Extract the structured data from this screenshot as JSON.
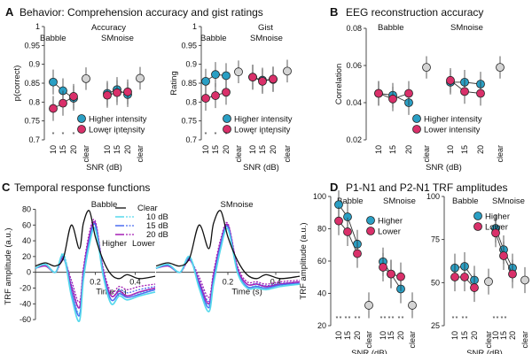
{
  "panels": {
    "A": {
      "letter": "A",
      "title": "Behavior: Comprehension accuracy and gist ratings"
    },
    "B": {
      "letter": "B",
      "title": "EEG reconstruction accuracy"
    },
    "C": {
      "letter": "C",
      "title": "Temporal response functions"
    },
    "D": {
      "letter": "D",
      "title": "P1-N1 and P2-N1 TRF amplitudes"
    }
  },
  "colors": {
    "higher": "#2a9fc4",
    "lower": "#d9306a",
    "clear": "#d4d4d4",
    "star_lower": "#e46a9a",
    "star_higher": "#8a9ce0",
    "cyan": "#55d8ec",
    "blue": "#4a6cf0",
    "purple": "#a51fb5"
  },
  "chart_data": [
    {
      "id": "accuracy",
      "type": "scatter",
      "title": "Accuracy",
      "ylabel": "p(correct)",
      "xlabel": "SNR (dB)",
      "ylim": [
        0.7,
        1.0
      ],
      "yticks": [
        "1",
        "0.95",
        "0.9",
        "0.85",
        "0.8",
        "0.75",
        "0.7"
      ],
      "groups": [
        "Babble",
        "SMnoise"
      ],
      "categories": [
        "10",
        "15",
        "20",
        "clear"
      ],
      "series": [
        {
          "name": "Higher intensity",
          "babble": [
            0.853,
            0.83,
            0.81
          ],
          "smnoise": [
            0.823,
            0.833,
            0.82
          ]
        },
        {
          "name": "Lower intensity",
          "babble": [
            0.783,
            0.797,
            0.815
          ],
          "smnoise": [
            0.818,
            0.825,
            0.827
          ]
        }
      ],
      "clear": {
        "babble": 0.862,
        "smnoise": 0.863
      },
      "stars": {
        "babble": [
          "10",
          "15"
        ],
        "smnoise": []
      },
      "legend": [
        "Higher intensity",
        "Lower intensity"
      ]
    },
    {
      "id": "gist",
      "type": "scatter",
      "title": "Gist",
      "ylabel": "Rating",
      "xlabel": "SNR (dB)",
      "ylim": [
        0.7,
        1.0
      ],
      "yticks": [
        "1",
        "0.95",
        "0.9",
        "0.85",
        "0.8",
        "0.75",
        "0.7"
      ],
      "groups": [
        "Babble",
        "SMnoise"
      ],
      "categories": [
        "10",
        "15",
        "20",
        "clear"
      ],
      "series": [
        {
          "name": "Higher intensity",
          "babble": [
            0.855,
            0.873,
            0.87
          ],
          "smnoise": [
            0.866,
            0.858,
            0.86
          ]
        },
        {
          "name": "Lower intensity",
          "babble": [
            0.81,
            0.817,
            0.826
          ],
          "smnoise": [
            0.866,
            0.855,
            0.861
          ]
        }
      ],
      "clear": {
        "babble": 0.88,
        "smnoise": 0.882
      },
      "stars": {
        "babble": [
          "10",
          "15",
          "20"
        ],
        "smnoise": []
      },
      "legend": [
        "Higher intensity",
        "Lower intensity"
      ]
    },
    {
      "id": "eeg",
      "type": "scatter",
      "title": "",
      "ylabel": "Correlation",
      "xlabel": "SNR (dB)",
      "ylim": [
        0.02,
        0.08
      ],
      "yticks": [
        "0.08",
        "0.06",
        "0.04",
        "0.02"
      ],
      "groups": [
        "Babble",
        "SMnoise"
      ],
      "categories": [
        "10",
        "15",
        "20",
        "clear"
      ],
      "series": [
        {
          "name": "Higher intensity",
          "babble": [
            0.045,
            0.044,
            0.04
          ],
          "smnoise": [
            0.051,
            0.051,
            0.05
          ]
        },
        {
          "name": "Lower intensity",
          "babble": [
            0.045,
            0.042,
            0.045
          ],
          "smnoise": [
            0.052,
            0.046,
            0.045
          ]
        }
      ],
      "clear": {
        "babble": 0.059,
        "smnoise": 0.059
      },
      "legend": [
        "Higher intensity",
        "Lower intensity"
      ]
    },
    {
      "id": "trf_babble",
      "type": "line",
      "title": "Babble",
      "xlabel": "Time (s)",
      "ylabel": "TRF amplitude (a.u.)",
      "xlim": [
        -0.1,
        0.5
      ],
      "ylim": [
        -70,
        85
      ],
      "yticks": [
        "80",
        "60",
        "40",
        "20",
        "0",
        "-20",
        "-40",
        "-60"
      ],
      "xticks": [
        "0.2",
        "0.4"
      ],
      "time": [
        -0.1,
        -0.05,
        0.0,
        0.04,
        0.08,
        0.12,
        0.14,
        0.17,
        0.2,
        0.24,
        0.28,
        0.32,
        0.36,
        0.42,
        0.5
      ],
      "series": [
        {
          "name": "Clear",
          "values": [
            8,
            12,
            8,
            18,
            60,
            30,
            62,
            78,
            45,
            15,
            -3,
            -8,
            -3,
            -8,
            -5
          ]
        },
        {
          "name": "Higher 10 dB",
          "values": [
            5,
            10,
            0,
            22,
            -30,
            -62,
            -10,
            35,
            55,
            -5,
            -40,
            -30,
            -35,
            -30,
            -25
          ]
        },
        {
          "name": "Higher 15 dB",
          "values": [
            5,
            10,
            0,
            20,
            -25,
            -55,
            -5,
            40,
            60,
            -2,
            -35,
            -27,
            -32,
            -28,
            -22
          ]
        },
        {
          "name": "Higher 20 dB",
          "values": [
            5,
            8,
            0,
            18,
            -18,
            -45,
            0,
            45,
            62,
            0,
            -30,
            -24,
            -30,
            -25,
            -20
          ]
        },
        {
          "name": "Lower 10 dB",
          "values": [
            5,
            11,
            0,
            24,
            -20,
            -52,
            -5,
            40,
            60,
            0,
            -35,
            -26,
            -30,
            -26,
            -22
          ]
        },
        {
          "name": "Lower 15 dB",
          "values": [
            5,
            10,
            0,
            20,
            -15,
            -45,
            0,
            45,
            63,
            2,
            -30,
            -22,
            -26,
            -22,
            -18
          ]
        },
        {
          "name": "Lower 20 dB",
          "values": [
            5,
            8,
            0,
            16,
            -10,
            -38,
            5,
            50,
            65,
            5,
            -25,
            -18,
            -22,
            -18,
            -15
          ]
        }
      ],
      "legend": [
        "Clear",
        "10 dB",
        "15 dB",
        "20 dB"
      ],
      "legend_headers": [
        "Higher",
        "Lower"
      ]
    },
    {
      "id": "trf_smnoise",
      "type": "line",
      "title": "SMnoise",
      "xlabel": "Time (s)",
      "ylabel": "",
      "xlim": [
        -0.1,
        0.5
      ],
      "ylim": [
        -70,
        85
      ],
      "xticks": [
        "0.2",
        "0.4"
      ],
      "time": [
        -0.1,
        -0.05,
        0.0,
        0.04,
        0.08,
        0.12,
        0.14,
        0.17,
        0.2,
        0.24,
        0.28,
        0.32,
        0.36,
        0.42,
        0.5
      ],
      "series": [
        {
          "name": "Clear",
          "values": [
            8,
            12,
            8,
            18,
            60,
            30,
            62,
            78,
            45,
            15,
            -3,
            -8,
            -3,
            -8,
            -5
          ]
        },
        {
          "name": "Higher 10 dB",
          "values": [
            5,
            10,
            0,
            20,
            -20,
            -50,
            -15,
            30,
            55,
            0,
            -20,
            -20,
            -22,
            -18,
            -15
          ]
        },
        {
          "name": "Higher 15 dB",
          "values": [
            5,
            9,
            0,
            18,
            -16,
            -45,
            -10,
            35,
            58,
            2,
            -18,
            -18,
            -20,
            -16,
            -14
          ]
        },
        {
          "name": "Higher 20 dB",
          "values": [
            5,
            8,
            0,
            16,
            -12,
            -40,
            -5,
            38,
            60,
            5,
            -15,
            -15,
            -18,
            -15,
            -12
          ]
        },
        {
          "name": "Lower 10 dB",
          "values": [
            5,
            10,
            0,
            20,
            -14,
            -42,
            -8,
            35,
            57,
            2,
            -18,
            -17,
            -20,
            -16,
            -14
          ]
        },
        {
          "name": "Lower 15 dB",
          "values": [
            5,
            9,
            0,
            17,
            -10,
            -37,
            -4,
            38,
            60,
            5,
            -15,
            -14,
            -17,
            -14,
            -12
          ]
        },
        {
          "name": "Lower 20 dB",
          "values": [
            5,
            8,
            0,
            15,
            -6,
            -32,
            0,
            42,
            62,
            8,
            -12,
            -12,
            -15,
            -12,
            -10
          ]
        }
      ]
    },
    {
      "id": "p1n1",
      "type": "scatter",
      "title": "",
      "ylabel": "TRF amplitude (a.u.)",
      "xlabel": "SNR (dB)",
      "ylim": [
        20,
        115
      ],
      "yticks": [
        "100",
        "80",
        "60",
        "40",
        "20"
      ],
      "groups": [
        "Babble",
        "SMnoise"
      ],
      "categories": [
        "10",
        "15",
        "20",
        "clear"
      ],
      "series": [
        {
          "name": "Higher",
          "babble": [
            109,
            100,
            80
          ],
          "smnoise": [
            67,
            58,
            47
          ]
        },
        {
          "name": "Lower",
          "babble": [
            97,
            89,
            73
          ],
          "smnoise": [
            63,
            58,
            56
          ]
        }
      ],
      "clear": {
        "babble": 35,
        "smnoise": 35
      },
      "legend": [
        "Higher",
        "Lower"
      ]
    },
    {
      "id": "p2n1",
      "type": "scatter",
      "title": "",
      "ylabel": "",
      "xlabel": "SNR (dB)",
      "ylim": [
        25,
        110
      ],
      "yticks": [
        "100",
        "75",
        "50",
        "25"
      ],
      "groups": [
        "Babble",
        "SMnoise"
      ],
      "categories": [
        "10",
        "15",
        "20",
        "clear"
      ],
      "series": [
        {
          "name": "Higher",
          "babble": [
            63,
            64,
            55
          ],
          "smnoise": [
            89,
            75,
            63
          ]
        },
        {
          "name": "Lower",
          "babble": [
            57,
            57,
            50
          ],
          "smnoise": [
            86,
            71,
            59
          ]
        }
      ],
      "clear": {
        "babble": 54,
        "smnoise": 55
      },
      "legend": [
        "Higher",
        "Lower"
      ]
    }
  ]
}
